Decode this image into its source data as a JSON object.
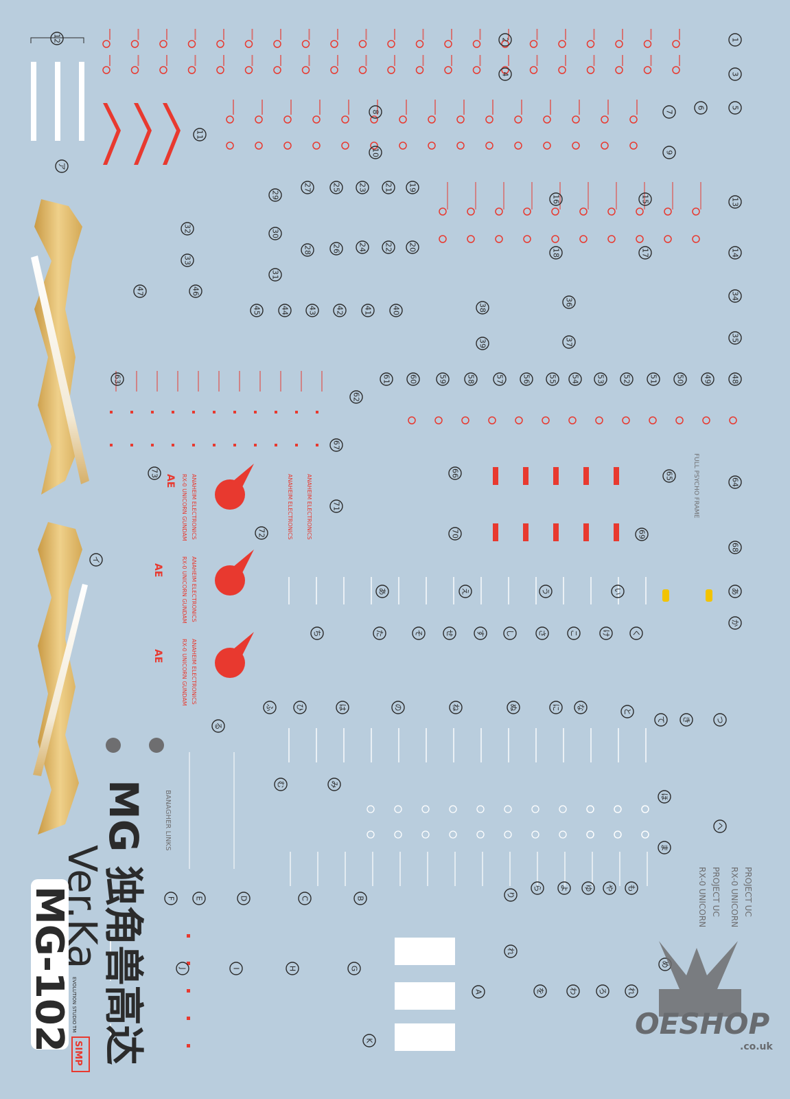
{
  "title": {
    "line1": "MG 独角兽高达",
    "line2": "Ver.Ka",
    "code": "MG-102",
    "studio": "EVOLUTION STUDIO",
    "tm": "TM",
    "stamp": "SIMP"
  },
  "captions": {
    "pilot": "BANAGHER LINKS",
    "project1": "PROJECT UC",
    "project2": "RX-0 UNICORN",
    "anaheim": "ANAHEIM ELECTRONICS",
    "unicorn": "RX-0 UNICORN GUNDAM",
    "psycho": "FULL PSYCHO FRAME",
    "ae": "AE",
    "watermark": "OESHOP",
    "watermark_domain": ".co.uk"
  },
  "markers": [
    "1",
    "2",
    "3",
    "4",
    "5",
    "6",
    "7",
    "8",
    "9",
    "10",
    "11",
    "12",
    "13",
    "14",
    "15",
    "16",
    "17",
    "18",
    "19",
    "20",
    "21",
    "22",
    "23",
    "24",
    "25",
    "26",
    "27",
    "28",
    "29",
    "30",
    "31",
    "32",
    "33",
    "34",
    "35",
    "36",
    "37",
    "38",
    "39",
    "40",
    "41",
    "42",
    "43",
    "44",
    "45",
    "46",
    "47",
    "48",
    "49",
    "50",
    "51",
    "52",
    "53",
    "54",
    "55",
    "56",
    "57",
    "58",
    "59",
    "60",
    "61",
    "62",
    "63",
    "64",
    "65",
    "66",
    "67",
    "68",
    "69",
    "70",
    "71",
    "72",
    "73",
    "あ",
    "か",
    "あ",
    "い",
    "う",
    "え",
    "く",
    "け",
    "こ",
    "さ",
    "し",
    "す",
    "せ",
    "そ",
    "た",
    "ち",
    "つ",
    "き",
    "て",
    "と",
    "な",
    "に",
    "ぬ",
    "ね",
    "の",
    "は",
    "ひ",
    "ふ",
    "る",
    "へ",
    "ほ",
    "ま",
    "み",
    "む",
    "も",
    "や",
    "ゆ",
    "よ",
    "ら",
    "り",
    "れ",
    "め",
    "を",
    "わ",
    "ろ",
    "れ",
    "A",
    "B",
    "C",
    "D",
    "E",
    "F",
    "G",
    "H",
    "I",
    "J",
    "K",
    "イ",
    "ア"
  ],
  "colors": {
    "background": "#b9cddd",
    "decal_red": "#e8392f",
    "gold": "#d9b25a",
    "ink": "#2b2b2b",
    "grey": "#6e6e70",
    "yellow": "#f2c300"
  }
}
